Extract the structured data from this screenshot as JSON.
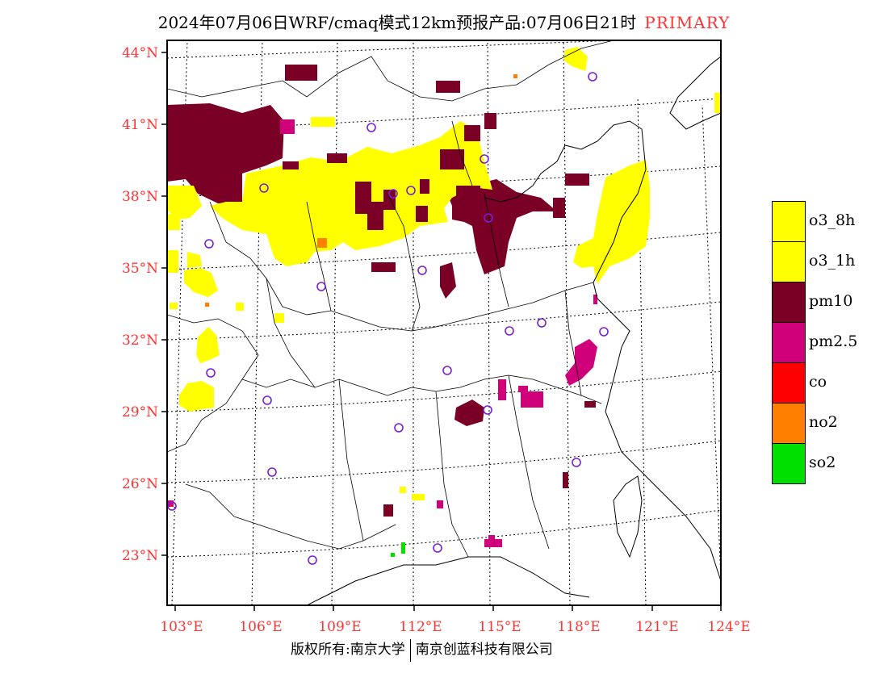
{
  "title": {
    "main": "2024年07月06日WRF/cmaq模式12km预报产品:07月06日21时",
    "tag": "PRIMARY"
  },
  "axes": {
    "lat_labels": [
      "44°N",
      "41°N",
      "38°N",
      "35°N",
      "32°N",
      "29°N",
      "26°N",
      "23°N"
    ],
    "lon_labels": [
      "103°E",
      "106°E",
      "109°E",
      "112°E",
      "115°E",
      "118°E",
      "121°E",
      "124°E"
    ]
  },
  "legend": [
    {
      "label": "o3_8h",
      "color": "#ffff00"
    },
    {
      "label": "o3_1h",
      "color": "#ffff00"
    },
    {
      "label": "pm10",
      "color": "#7a0026"
    },
    {
      "label": "pm2.5",
      "color": "#d0007a"
    },
    {
      "label": "co",
      "color": "#ff0000"
    },
    {
      "label": "no2",
      "color": "#ff7f00"
    },
    {
      "label": "so2",
      "color": "#00e000"
    }
  ],
  "colors": {
    "label_red": "#ff3333",
    "o3": "#ffff00",
    "pm10": "#7a0026",
    "pm25": "#d0007a",
    "no2": "#ff7f00",
    "so2": "#00e000",
    "station": "#7b1fd6"
  },
  "footer": {
    "copyright": "版权所有:南京大学",
    "company": "南京创蓝科技有限公司"
  }
}
